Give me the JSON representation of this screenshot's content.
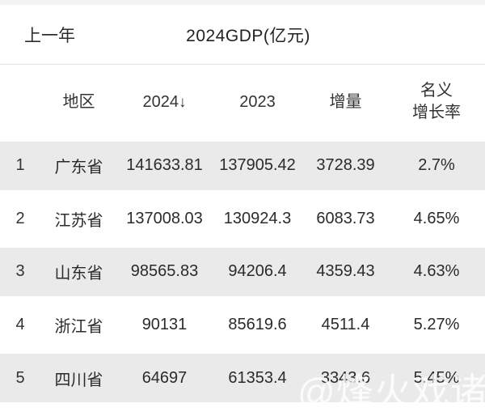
{
  "header": {
    "back_label": "上一年",
    "title": "2024GDP(亿元)"
  },
  "table": {
    "columns": {
      "rank": "",
      "region": "地区",
      "year_2024": "2024",
      "sort_icon": "↓",
      "year_2023": "2023",
      "increase": "增量",
      "rate_line1": "名义",
      "rate_line2": "增长率"
    },
    "rows": [
      {
        "rank": "1",
        "region": "广东省",
        "gdp_2024": "141633.81",
        "gdp_2023": "137905.42",
        "increase": "3728.39",
        "growth_rate": "2.7%"
      },
      {
        "rank": "2",
        "region": "江苏省",
        "gdp_2024": "137008.03",
        "gdp_2023": "130924.3",
        "increase": "6083.73",
        "growth_rate": "4.65%"
      },
      {
        "rank": "3",
        "region": "山东省",
        "gdp_2024": "98565.83",
        "gdp_2023": "94206.4",
        "increase": "4359.43",
        "growth_rate": "4.63%"
      },
      {
        "rank": "4",
        "region": "浙江省",
        "gdp_2024": "90131",
        "gdp_2023": "85619.6",
        "increase": "4511.4",
        "growth_rate": "5.27%"
      },
      {
        "rank": "5",
        "region": "四川省",
        "gdp_2024": "64697",
        "gdp_2023": "61353.4",
        "increase": "3343.6",
        "growth_rate": "5.45%"
      }
    ]
  },
  "watermark": "@烽火戏诸侯",
  "colors": {
    "stripe": "#eaeaea",
    "divider": "#e3e3e3",
    "text": "#2b2b2b",
    "watermark": "#ffffff"
  }
}
